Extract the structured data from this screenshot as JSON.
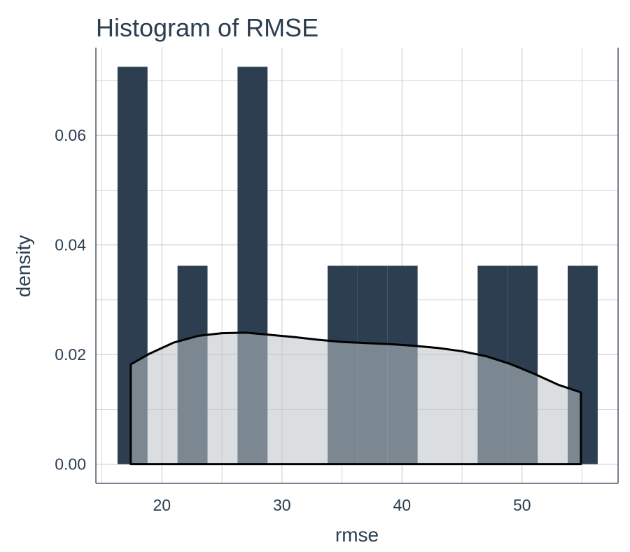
{
  "chart_data": {
    "type": "histogram",
    "title": "Histogram of RMSE",
    "xlabel": "rmse",
    "ylabel": "density",
    "xlim": [
      14.5,
      58.0
    ],
    "ylim": [
      -0.0035,
      0.076
    ],
    "x_ticks": [
      20,
      30,
      40,
      50
    ],
    "x_tick_labels": [
      "20",
      "30",
      "40",
      "50"
    ],
    "y_ticks": [
      0.0,
      0.02,
      0.04,
      0.06
    ],
    "y_tick_labels": [
      "0.00",
      "0.02",
      "0.04",
      "0.06"
    ],
    "grid": true,
    "bins": [
      {
        "x0": 16.3,
        "x1": 18.8,
        "density": 0.0725
      },
      {
        "x0": 21.3,
        "x1": 23.8,
        "density": 0.0362
      },
      {
        "x0": 26.3,
        "x1": 28.8,
        "density": 0.0725
      },
      {
        "x0": 33.8,
        "x1": 36.3,
        "density": 0.0362
      },
      {
        "x0": 36.3,
        "x1": 38.8,
        "density": 0.0362
      },
      {
        "x0": 38.8,
        "x1": 41.3,
        "density": 0.0362
      },
      {
        "x0": 46.3,
        "x1": 48.8,
        "density": 0.0362
      },
      {
        "x0": 48.8,
        "x1": 51.3,
        "density": 0.0362
      },
      {
        "x0": 53.8,
        "x1": 56.3,
        "density": 0.0362
      }
    ],
    "density_curve": {
      "x": [
        17.4,
        19,
        21,
        23,
        25,
        27,
        29,
        31,
        33,
        35,
        37,
        39,
        41,
        43,
        45,
        47,
        49,
        51,
        53,
        54.9
      ],
      "y": [
        0.0182,
        0.0202,
        0.0222,
        0.0234,
        0.0239,
        0.024,
        0.0236,
        0.0232,
        0.0227,
        0.0223,
        0.0221,
        0.0219,
        0.0216,
        0.0212,
        0.0206,
        0.0197,
        0.0183,
        0.0165,
        0.0145,
        0.0131
      ]
    }
  },
  "colors": {
    "bar_fill": "#2c3e50",
    "density_fill": "#bdc3c7",
    "density_stroke": "#000000",
    "text": "#2c3e50",
    "grid": "#cccccc",
    "background": "#ffffff"
  }
}
